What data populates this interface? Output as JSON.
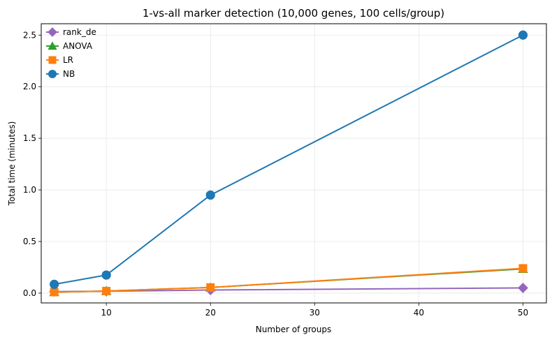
{
  "chart_data": {
    "type": "line",
    "title": "1-vs-all marker detection (10,000 genes, 100 cells/group)",
    "xlabel": "Number of groups",
    "ylabel": "Total time (minutes)",
    "xlim": [
      3.75,
      52.25
    ],
    "ylim": [
      -0.095,
      2.61
    ],
    "x_ticks": [
      10,
      20,
      30,
      40,
      50
    ],
    "y_ticks": [
      0.0,
      0.5,
      1.0,
      1.5,
      2.0,
      2.5
    ],
    "x_tick_labels": [
      "10",
      "20",
      "30",
      "40",
      "50"
    ],
    "y_tick_labels": [
      "0.0",
      "0.5",
      "1.0",
      "1.5",
      "2.0",
      "2.5"
    ],
    "grid": true,
    "legend_position": "top-left",
    "x": [
      5,
      10,
      20,
      50
    ],
    "series": [
      {
        "name": "rank_de",
        "marker": "diamond",
        "color": "#9467bd",
        "values": [
          0.015,
          0.018,
          0.03,
          0.05
        ]
      },
      {
        "name": "ANOVA",
        "marker": "triangle",
        "color": "#2ca02c",
        "values": [
          0.01,
          0.02,
          0.055,
          0.235
        ]
      },
      {
        "name": "LR",
        "marker": "square",
        "color": "#ff7f0e",
        "values": [
          0.01,
          0.02,
          0.055,
          0.24
        ]
      },
      {
        "name": "NB",
        "marker": "circle",
        "color": "#1f77b4",
        "values": [
          0.085,
          0.175,
          0.95,
          2.5
        ]
      }
    ]
  }
}
